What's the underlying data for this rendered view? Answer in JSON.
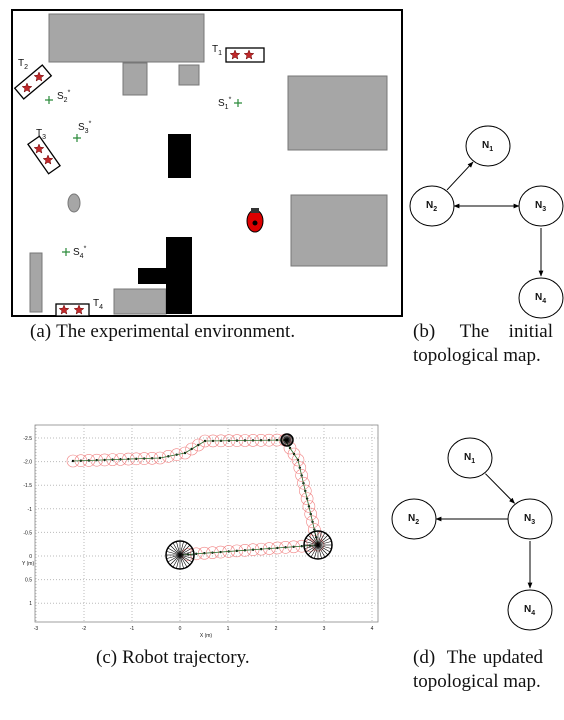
{
  "figure": {
    "env": {
      "targets": [
        {
          "name": "T",
          "sub": "1"
        },
        {
          "name": "T",
          "sub": "2"
        },
        {
          "name": "T",
          "sub": "3"
        },
        {
          "name": "T",
          "sub": "4"
        }
      ],
      "starts": [
        {
          "name": "S",
          "sub": "1",
          "sup": "*"
        },
        {
          "name": "S",
          "sub": "2",
          "sup": "*"
        },
        {
          "name": "S",
          "sub": "3",
          "sup": "*"
        },
        {
          "name": "S",
          "sub": "4",
          "sup": "*"
        }
      ]
    },
    "initial_map": {
      "nodes": [
        {
          "name": "N",
          "sub": "1"
        },
        {
          "name": "N",
          "sub": "2"
        },
        {
          "name": "N",
          "sub": "3"
        },
        {
          "name": "N",
          "sub": "4"
        }
      ]
    },
    "updated_map": {
      "nodes": [
        {
          "name": "N",
          "sub": "1"
        },
        {
          "name": "N",
          "sub": "2"
        },
        {
          "name": "N",
          "sub": "3"
        },
        {
          "name": "N",
          "sub": "4"
        }
      ]
    },
    "trajectory": {
      "x_label": "X (m)",
      "y_label": "Y (m)",
      "x_ticks": [
        "-3",
        "-2",
        "-1",
        "0",
        "1",
        "2",
        "3",
        "4"
      ],
      "y_ticks": [
        "-2.5",
        "-2.0",
        "-1.5",
        "-1",
        "-0.5",
        "0",
        "0.5",
        "1"
      ]
    },
    "captions": [
      {
        "label": "(a)",
        "text": "The experimental environment."
      },
      {
        "label": "(b)",
        "text": "The initial topological map."
      },
      {
        "label": "(c)",
        "text": "Robot trajectory."
      },
      {
        "label": "(d)",
        "text": "The updated topological map."
      }
    ]
  }
}
